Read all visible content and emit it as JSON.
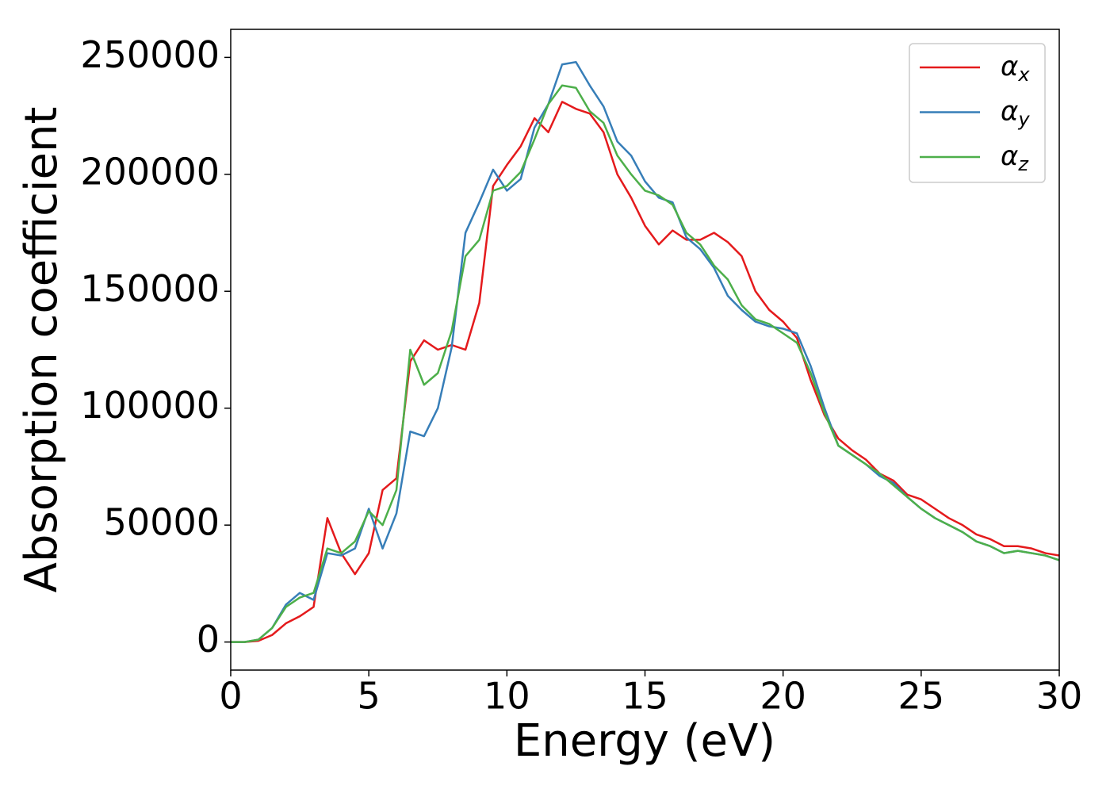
{
  "chart_data": {
    "type": "line",
    "xlabel": "Energy (eV)",
    "ylabel": "Absorption coefficient",
    "x": [
      0,
      0.5,
      1,
      1.5,
      2,
      2.5,
      3,
      3.5,
      4,
      4.5,
      5,
      5.5,
      6,
      6.5,
      7,
      7.5,
      8,
      8.5,
      9,
      9.5,
      10,
      10.5,
      11,
      11.5,
      12,
      12.5,
      13,
      13.5,
      14,
      14.5,
      15,
      15.5,
      16,
      16.5,
      17,
      17.5,
      18,
      18.5,
      19,
      19.5,
      20,
      20.5,
      21,
      21.5,
      22,
      22.5,
      23,
      23.5,
      24,
      24.5,
      25,
      25.5,
      26,
      26.5,
      27,
      27.5,
      28,
      28.5,
      29,
      29.5,
      30
    ],
    "series": [
      {
        "name": "αx",
        "color": "#e41a1c",
        "values": [
          0,
          0,
          500,
          3000,
          8000,
          11000,
          15000,
          53000,
          38000,
          29000,
          38000,
          65000,
          70000,
          120000,
          129000,
          125000,
          127000,
          125000,
          145000,
          195000,
          204000,
          212000,
          224000,
          218000,
          231000,
          228000,
          226000,
          218000,
          200000,
          190000,
          178000,
          170000,
          176000,
          172000,
          172000,
          175000,
          171000,
          165000,
          150000,
          142000,
          137000,
          130000,
          112000,
          97000,
          87000,
          82000,
          78000,
          72000,
          69000,
          63000,
          61000,
          57000,
          53000,
          50000,
          46000,
          44000,
          41000,
          41000,
          40000,
          38000,
          37000
        ]
      },
      {
        "name": "αy",
        "color": "#377eb8",
        "values": [
          0,
          0,
          1000,
          6000,
          16000,
          21000,
          18000,
          38000,
          37000,
          40000,
          57000,
          40000,
          55000,
          90000,
          88000,
          100000,
          126000,
          175000,
          188000,
          202000,
          193000,
          198000,
          220000,
          230000,
          247000,
          248000,
          238000,
          229000,
          214000,
          208000,
          197000,
          190000,
          188000,
          173000,
          168000,
          160000,
          148000,
          142000,
          137000,
          135000,
          134000,
          132000,
          118000,
          100000,
          84000,
          80000,
          76000,
          71000,
          68000,
          62000,
          57000,
          53000,
          50000,
          47000,
          43000,
          41000,
          38000,
          39000,
          38000,
          37000,
          35000
        ]
      },
      {
        "name": "αz",
        "color": "#4daf4a",
        "values": [
          0,
          0,
          1000,
          6000,
          15000,
          19000,
          21000,
          40000,
          38000,
          43000,
          56000,
          50000,
          65000,
          125000,
          110000,
          115000,
          133000,
          165000,
          172000,
          193000,
          195000,
          201000,
          215000,
          230000,
          238000,
          237000,
          227000,
          222000,
          208000,
          200000,
          193000,
          191000,
          187000,
          175000,
          170000,
          161000,
          155000,
          144000,
          138000,
          136000,
          132000,
          128000,
          115000,
          98000,
          84000,
          80000,
          76000,
          72000,
          67000,
          62000,
          57000,
          53000,
          50000,
          47000,
          43000,
          41000,
          38000,
          39000,
          38000,
          37000,
          35000
        ]
      }
    ],
    "xlim": [
      0,
      30
    ],
    "xticks": [
      0,
      5,
      10,
      15,
      20,
      25,
      30
    ],
    "ylim": [
      -12000,
      262000
    ],
    "yticks": [
      0,
      50000,
      100000,
      150000,
      200000,
      250000
    ],
    "grid": false,
    "legend": "upper right"
  }
}
